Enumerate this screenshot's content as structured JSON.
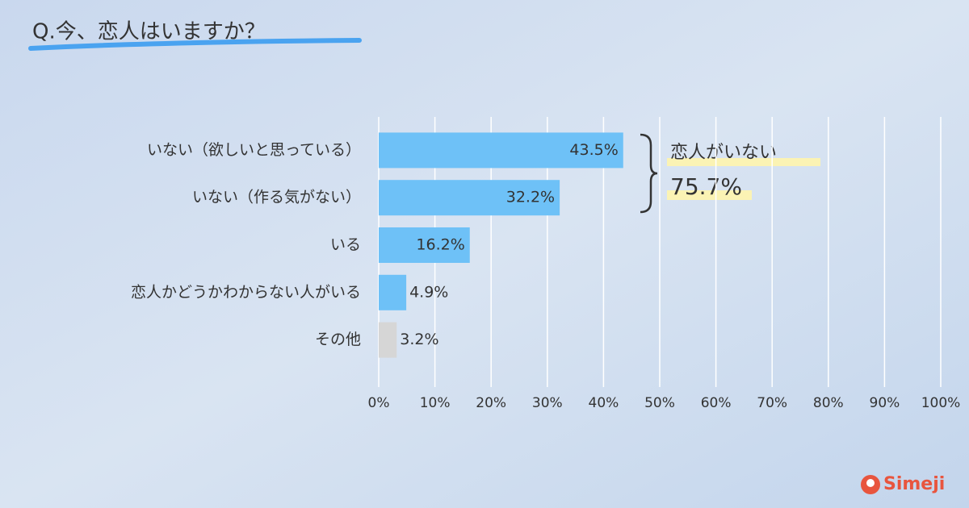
{
  "chart_data": {
    "type": "bar",
    "orientation": "horizontal",
    "title": "Q.今、恋人はいますか？",
    "categories": [
      "いない（欲しいと思っている）",
      "いない（作る気がない）",
      "いる",
      "恋人かどうかわからない人がいる",
      "その他"
    ],
    "values": [
      43.5,
      32.2,
      16.2,
      4.9,
      3.2
    ],
    "value_labels": [
      "43.5%",
      "32.2%",
      "16.2%",
      "4.9%",
      "3.2%"
    ],
    "colors": [
      "#6ec1f7",
      "#6ec1f7",
      "#6ec1f7",
      "#6ec1f7",
      "#d6d6d6"
    ],
    "xlim": [
      0,
      100
    ],
    "xticks": [
      {
        "value": 0,
        "label": "0%"
      },
      {
        "value": 10,
        "label": "10%"
      },
      {
        "value": 20,
        "label": "20%"
      },
      {
        "value": 30,
        "label": "30%"
      },
      {
        "value": 40,
        "label": "40%"
      },
      {
        "value": 50,
        "label": "50%"
      },
      {
        "value": 60,
        "label": "60%"
      },
      {
        "value": 70,
        "label": "70%"
      },
      {
        "value": 80,
        "label": "80%"
      },
      {
        "value": 90,
        "label": "90%"
      },
      {
        "value": 100,
        "label": "100%"
      }
    ],
    "grid": true,
    "annotations": [
      "恋人がいない",
      "75.7%"
    ]
  },
  "brand": "Simeji"
}
